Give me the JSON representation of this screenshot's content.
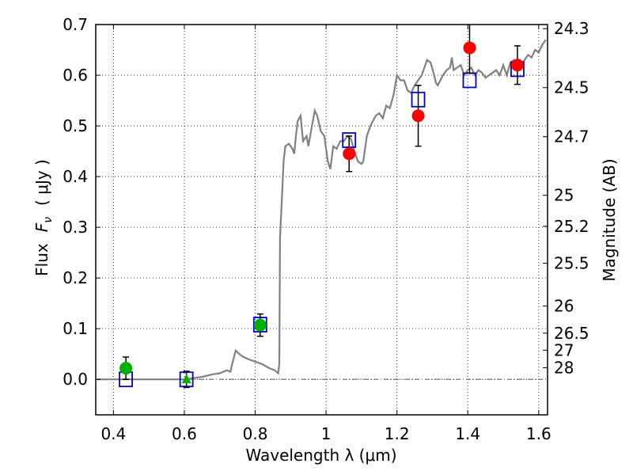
{
  "chart_data": {
    "type": "scatter",
    "xlabel": "Wavelength  λ (μm)",
    "ylabel_left_prefix": "Flux",
    "ylabel_left_symbol": "F",
    "ylabel_left_subscript": "ν",
    "ylabel_left_unit": "( μJy )",
    "ylabel_right": "Magnitude (AB)",
    "xlim": [
      0.35,
      1.625
    ],
    "ylim": [
      -0.07,
      0.7
    ],
    "grid": true,
    "x_ticks": [
      0.4,
      0.6,
      0.8,
      1.0,
      1.2,
      1.4,
      1.6
    ],
    "x_tick_labels": [
      "0.4",
      "0.6",
      "0.8",
      "1",
      "1.2",
      "1.4",
      "1.6"
    ],
    "y_ticks": [
      0.0,
      0.1,
      0.2,
      0.3,
      0.4,
      0.5,
      0.6,
      0.7
    ],
    "y_tick_labels": [
      "0.0",
      "0.1",
      "0.2",
      "0.3",
      "0.4",
      "0.5",
      "0.6",
      "0.7"
    ],
    "right_ticks": [
      {
        "label": "24.3",
        "mag": 24.3
      },
      {
        "label": "24.5",
        "mag": 24.5
      },
      {
        "label": "24.7",
        "mag": 24.7
      },
      {
        "label": "25",
        "mag": 25.0
      },
      {
        "label": "25.2",
        "mag": 25.2
      },
      {
        "label": "25.5",
        "mag": 25.5
      },
      {
        "label": "26",
        "mag": 26.0
      },
      {
        "label": "26.5",
        "mag": 26.5
      },
      {
        "label": "27",
        "mag": 27.0
      },
      {
        "label": "28",
        "mag": 28.0
      }
    ],
    "model_spectrum": {
      "color": "#808080",
      "points": [
        [
          0.35,
          0.0
        ],
        [
          0.55,
          0.0
        ],
        [
          0.6,
          0.0
        ],
        [
          0.65,
          0.005
        ],
        [
          0.68,
          0.01
        ],
        [
          0.7,
          0.012
        ],
        [
          0.72,
          0.018
        ],
        [
          0.73,
          0.015
        ],
        [
          0.735,
          0.03
        ],
        [
          0.745,
          0.057
        ],
        [
          0.755,
          0.05
        ],
        [
          0.765,
          0.045
        ],
        [
          0.78,
          0.04
        ],
        [
          0.8,
          0.035
        ],
        [
          0.82,
          0.03
        ],
        [
          0.84,
          0.022
        ],
        [
          0.855,
          0.018
        ],
        [
          0.865,
          0.012
        ],
        [
          0.868,
          0.03
        ],
        [
          0.87,
          0.28
        ],
        [
          0.875,
          0.35
        ],
        [
          0.88,
          0.43
        ],
        [
          0.885,
          0.46
        ],
        [
          0.895,
          0.465
        ],
        [
          0.905,
          0.455
        ],
        [
          0.91,
          0.445
        ],
        [
          0.915,
          0.48
        ],
        [
          0.92,
          0.51
        ],
        [
          0.928,
          0.52
        ],
        [
          0.935,
          0.47
        ],
        [
          0.945,
          0.48
        ],
        [
          0.95,
          0.46
        ],
        [
          0.96,
          0.5
        ],
        [
          0.968,
          0.53
        ],
        [
          0.975,
          0.52
        ],
        [
          0.985,
          0.49
        ],
        [
          0.995,
          0.48
        ],
        [
          1.005,
          0.43
        ],
        [
          1.012,
          0.415
        ],
        [
          1.02,
          0.46
        ],
        [
          1.03,
          0.455
        ],
        [
          1.04,
          0.47
        ],
        [
          1.05,
          0.47
        ],
        [
          1.06,
          0.48
        ],
        [
          1.07,
          0.475
        ],
        [
          1.08,
          0.45
        ],
        [
          1.09,
          0.43
        ],
        [
          1.1,
          0.425
        ],
        [
          1.105,
          0.43
        ],
        [
          1.115,
          0.48
        ],
        [
          1.125,
          0.5
        ],
        [
          1.14,
          0.52
        ],
        [
          1.15,
          0.525
        ],
        [
          1.16,
          0.515
        ],
        [
          1.17,
          0.54
        ],
        [
          1.18,
          0.535
        ],
        [
          1.19,
          0.56
        ],
        [
          1.2,
          0.6
        ],
        [
          1.21,
          0.59
        ],
        [
          1.22,
          0.59
        ],
        [
          1.23,
          0.57
        ],
        [
          1.24,
          0.565
        ],
        [
          1.25,
          0.58
        ],
        [
          1.26,
          0.59
        ],
        [
          1.27,
          0.6
        ],
        [
          1.285,
          0.63
        ],
        [
          1.295,
          0.625
        ],
        [
          1.305,
          0.6
        ],
        [
          1.31,
          0.585
        ],
        [
          1.315,
          0.58
        ],
        [
          1.33,
          0.6
        ],
        [
          1.34,
          0.61
        ],
        [
          1.35,
          0.615
        ],
        [
          1.355,
          0.635
        ],
        [
          1.36,
          0.61
        ],
        [
          1.37,
          0.615
        ],
        [
          1.38,
          0.62
        ],
        [
          1.39,
          0.6
        ],
        [
          1.4,
          0.61
        ],
        [
          1.41,
          0.615
        ],
        [
          1.42,
          0.6
        ],
        [
          1.43,
          0.61
        ],
        [
          1.44,
          0.605
        ],
        [
          1.45,
          0.595
        ],
        [
          1.46,
          0.6
        ],
        [
          1.47,
          0.605
        ],
        [
          1.48,
          0.61
        ],
        [
          1.49,
          0.6
        ],
        [
          1.5,
          0.62
        ],
        [
          1.51,
          0.6
        ],
        [
          1.52,
          0.625
        ],
        [
          1.53,
          0.63
        ],
        [
          1.54,
          0.625
        ],
        [
          1.55,
          0.62
        ],
        [
          1.56,
          0.63
        ],
        [
          1.57,
          0.64
        ],
        [
          1.58,
          0.635
        ],
        [
          1.59,
          0.65
        ],
        [
          1.6,
          0.645
        ],
        [
          1.61,
          0.66
        ],
        [
          1.62,
          0.67
        ]
      ]
    },
    "model_photometry": {
      "marker": "open-square",
      "color": "#0000cc",
      "points": [
        {
          "x": 0.435,
          "y": 0.0
        },
        {
          "x": 0.606,
          "y": 0.0
        },
        {
          "x": 0.814,
          "y": 0.108
        },
        {
          "x": 1.065,
          "y": 0.472
        },
        {
          "x": 1.26,
          "y": 0.552
        },
        {
          "x": 1.405,
          "y": 0.59
        },
        {
          "x": 1.54,
          "y": 0.612
        }
      ]
    },
    "observed_detections": {
      "marker": "filled-circle",
      "color": "#ff0000",
      "points": [
        {
          "x": 1.065,
          "y": 0.445,
          "err": 0.035
        },
        {
          "x": 1.26,
          "y": 0.52,
          "err": 0.06
        },
        {
          "x": 1.405,
          "y": 0.654,
          "err": 0.05
        },
        {
          "x": 1.54,
          "y": 0.62,
          "err": 0.038
        }
      ]
    },
    "observed_other": {
      "color": "#00b000",
      "points": [
        {
          "x": 0.435,
          "y": 0.022,
          "err": 0.022,
          "marker": "filled-circle"
        },
        {
          "x": 0.606,
          "y": 0.0,
          "err": 0.016,
          "marker": "filled-triangle"
        },
        {
          "x": 0.814,
          "y": 0.107,
          "err": 0.022,
          "marker": "filled-circle"
        }
      ]
    }
  }
}
